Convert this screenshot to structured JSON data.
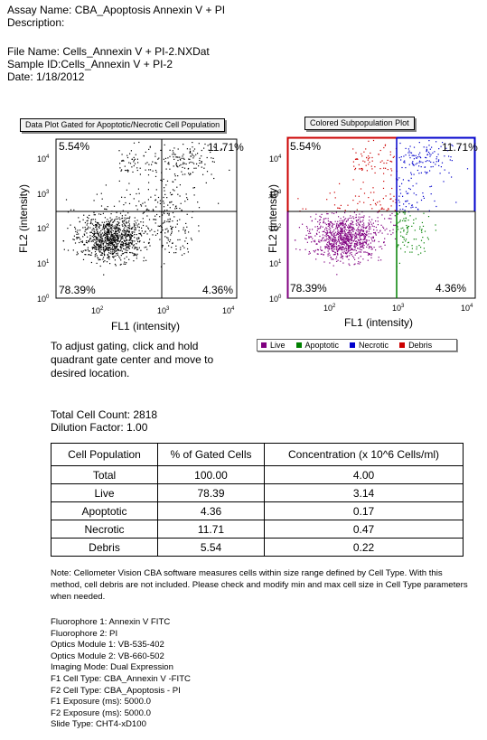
{
  "header": {
    "assay_name": "Assay Name: CBA_Apoptosis Annexin V + PI",
    "description": "Description:",
    "file_name": "File Name: Cells_Annexin V + PI-2.NXDat",
    "sample_id": "Sample ID:Cells_Annexin V + PI-2",
    "date": "Date: 1/18/2012"
  },
  "plot_left": {
    "tab_label": "Data Plot Gated for Apoptotic/Necrotic Cell Population",
    "quadrants": {
      "ul": "5.54%",
      "ur": "11.71%",
      "ll": "78.39%",
      "lr": "4.36%"
    },
    "xlabel": "FL1 (intensity)",
    "ylabel": "FL2 (intensity)"
  },
  "plot_right": {
    "tab_label": "Colored Subpopulation Plot",
    "quadrants": {
      "ul": "5.54%",
      "ur": "11.71%",
      "ll": "78.39%",
      "lr": "4.36%"
    },
    "xlabel": "FL1 (intensity)",
    "ylabel": "FL2 (intensity)"
  },
  "axis_ticks": {
    "x": [
      {
        "base": "10",
        "exp": "2"
      },
      {
        "base": "10",
        "exp": "3"
      },
      {
        "base": "10",
        "exp": "4"
      }
    ],
    "y": [
      {
        "base": "10",
        "exp": "0"
      },
      {
        "base": "10",
        "exp": "1"
      },
      {
        "base": "10",
        "exp": "2"
      },
      {
        "base": "10",
        "exp": "3"
      },
      {
        "base": "10",
        "exp": "4"
      }
    ]
  },
  "instructions": "To adjust gating, click and hold quadrant gate center and move to desired location.",
  "legend": [
    {
      "label": "Live",
      "color": "#800080"
    },
    {
      "label": "Apoptotic",
      "color": "#008000"
    },
    {
      "label": "Necrotic",
      "color": "#0000cc"
    },
    {
      "label": "Debris",
      "color": "#cc0000"
    }
  ],
  "summary": {
    "total_cell_count": "Total Cell Count: 2818",
    "dilution_factor": "Dilution Factor: 1.00"
  },
  "table": {
    "headers": [
      "Cell Population",
      "% of Gated Cells",
      "Concentration (x 10^6 Cells/ml)"
    ],
    "rows": [
      [
        "Total",
        "100.00",
        "4.00"
      ],
      [
        "Live",
        "78.39",
        "3.14"
      ],
      [
        "Apoptotic",
        "4.36",
        "0.17"
      ],
      [
        "Necrotic",
        "11.71",
        "0.47"
      ],
      [
        "Debris",
        "5.54",
        "0.22"
      ]
    ]
  },
  "note": "Note: Cellometer Vision CBA software measures cells within size range defined by Cell Type. With this method, cell debris are not included. Please check and modify min and max cell size in Cell Type parameters when needed.",
  "parameters": [
    "Fluorophore 1: Annexin V FITC",
    "Fluorophore 2: PI",
    "Optics Module 1: VB-535-402",
    "Optics Module 2: VB-660-502",
    "Imaging Mode: Dual Expression",
    "F1 Cell Type: CBA_Annexin V -FITC",
    "F2 Cell Type: CBA_Apoptosis - PI",
    "F1 Exposure (ms): 5000.0",
    "F2 Exposure (ms): 5000.0",
    "Slide Type: CHT4-xD100"
  ]
}
